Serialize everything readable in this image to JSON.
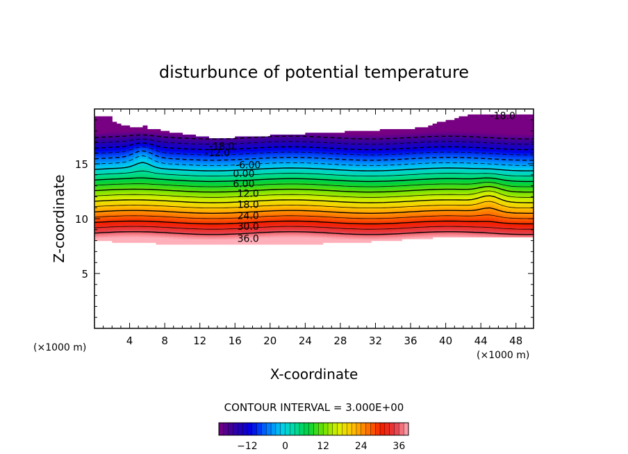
{
  "chart_data": {
    "type": "heatmap",
    "title": "disturbunce of potential temperature",
    "xlabel": "X-coordinate",
    "ylabel": "Z-coordinate",
    "x_unit": "(×1000 m)",
    "xlim": [
      0,
      50
    ],
    "ylim": [
      0,
      20
    ],
    "x_ticks": [
      "4",
      "8",
      "12",
      "16",
      "20",
      "24",
      "28",
      "32",
      "36",
      "40",
      "44",
      "48"
    ],
    "y_ticks": [
      "5",
      "10",
      "15"
    ],
    "contour_interval_text": "CONTOUR INTERVAL = 3.000E+00",
    "contour_interval": 3,
    "colorbar_range": [
      -21,
      39
    ],
    "colorbar_ticks": [
      "-12",
      "0",
      "12",
      "24",
      "36"
    ],
    "contour_labels": [
      {
        "text": "-18.0",
        "x": 46.5,
        "z": 19.4
      },
      {
        "text": "-18.0",
        "x": 14.5,
        "z": 16.6
      },
      {
        "text": "-12.0",
        "x": 14.0,
        "z": 16.0
      },
      {
        "text": "-6.00",
        "x": 17.5,
        "z": 14.9
      },
      {
        "text": "0.00",
        "x": 17.0,
        "z": 14.1
      },
      {
        "text": "6.00",
        "x": 17.0,
        "z": 13.2
      },
      {
        "text": "12.0",
        "x": 17.5,
        "z": 12.3
      },
      {
        "text": "18.0",
        "x": 17.5,
        "z": 11.3
      },
      {
        "text": "24.0",
        "x": 17.5,
        "z": 10.3
      },
      {
        "text": "30.0",
        "x": 17.5,
        "z": 9.3
      },
      {
        "text": "36.0",
        "x": 17.5,
        "z": 8.2
      }
    ]
  }
}
